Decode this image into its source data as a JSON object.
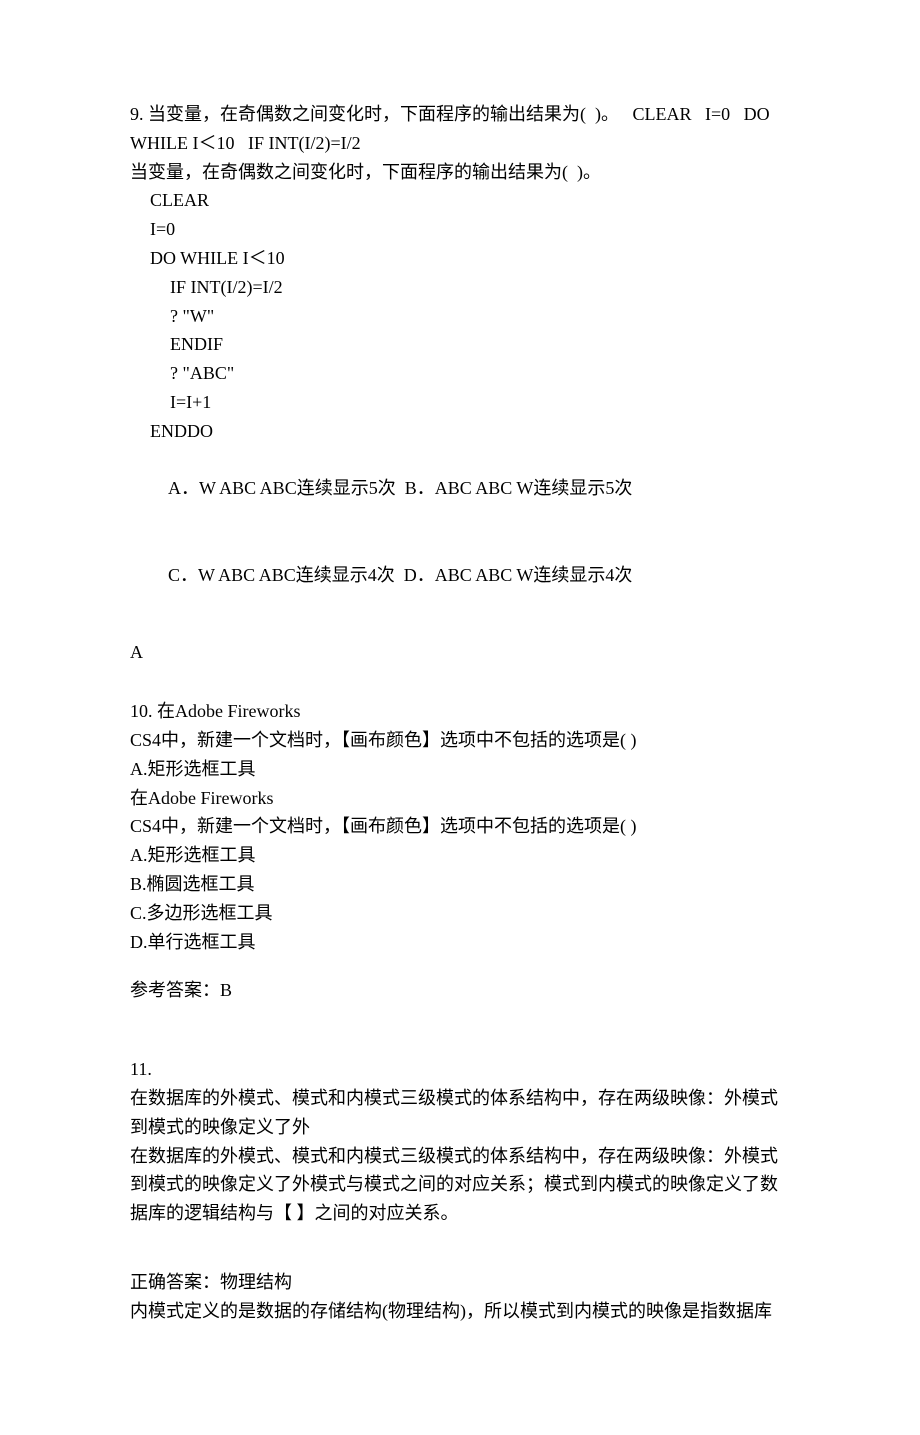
{
  "q9": {
    "line1": "9. 当变量，在奇偶数之间变化时，下面程序的输出结果为(  )。   CLEAR   I=0   DO WHILE I＜10   IF INT(I/2)=I/2",
    "line2": "当变量，在奇偶数之间变化时，下面程序的输出结果为(  )。",
    "code1": "CLEAR",
    "code2": "I=0",
    "code3": "DO WHILE I＜10",
    "code4": "IF INT(I/2)=I/2",
    "code5": "? \"W\"",
    "code6": "ENDIF",
    "code7": "? \"ABC\"",
    "code8": "I=I+1",
    "code9": "ENDDO",
    "optA": "A．W ABC ABC连续显示5次",
    "optB": "B．ABC ABC W连续显示5次",
    "optC": "C．W ABC ABC连续显示4次",
    "optD": "D．ABC ABC W连续显示4次",
    "answer": "A"
  },
  "q10": {
    "line1": "10. 在Adobe Fireworks",
    "line2": "CS4中，新建一个文档时，【画布颜色】选项中不包括的选项是( )",
    "line3": "A.矩形选框工具",
    "line4": "在Adobe Fireworks",
    "line5": "CS4中，新建一个文档时，【画布颜色】选项中不包括的选项是( )",
    "optA": "A.矩形选框工具",
    "optB": "B.椭圆选框工具",
    "optC": "C.多边形选框工具",
    "optD": "D.单行选框工具",
    "answerLabel": "参考答案：B"
  },
  "q11": {
    "num": "11.",
    "line1": "在数据库的外模式、模式和内模式三级模式的体系结构中，存在两级映像：外模式到模式的映像定义了外",
    "line2": "在数据库的外模式、模式和内模式三级模式的体系结构中，存在两级映像：外模式到模式的映像定义了外模式与模式之间的对应关系；模式到内模式的映像定义了数据库的逻辑结构与【 】之间的对应关系。",
    "answerLabel": "正确答案：物理结构",
    "explanation": "内模式定义的是数据的存储结构(物理结构)，所以模式到内模式的映像是指数据库"
  }
}
